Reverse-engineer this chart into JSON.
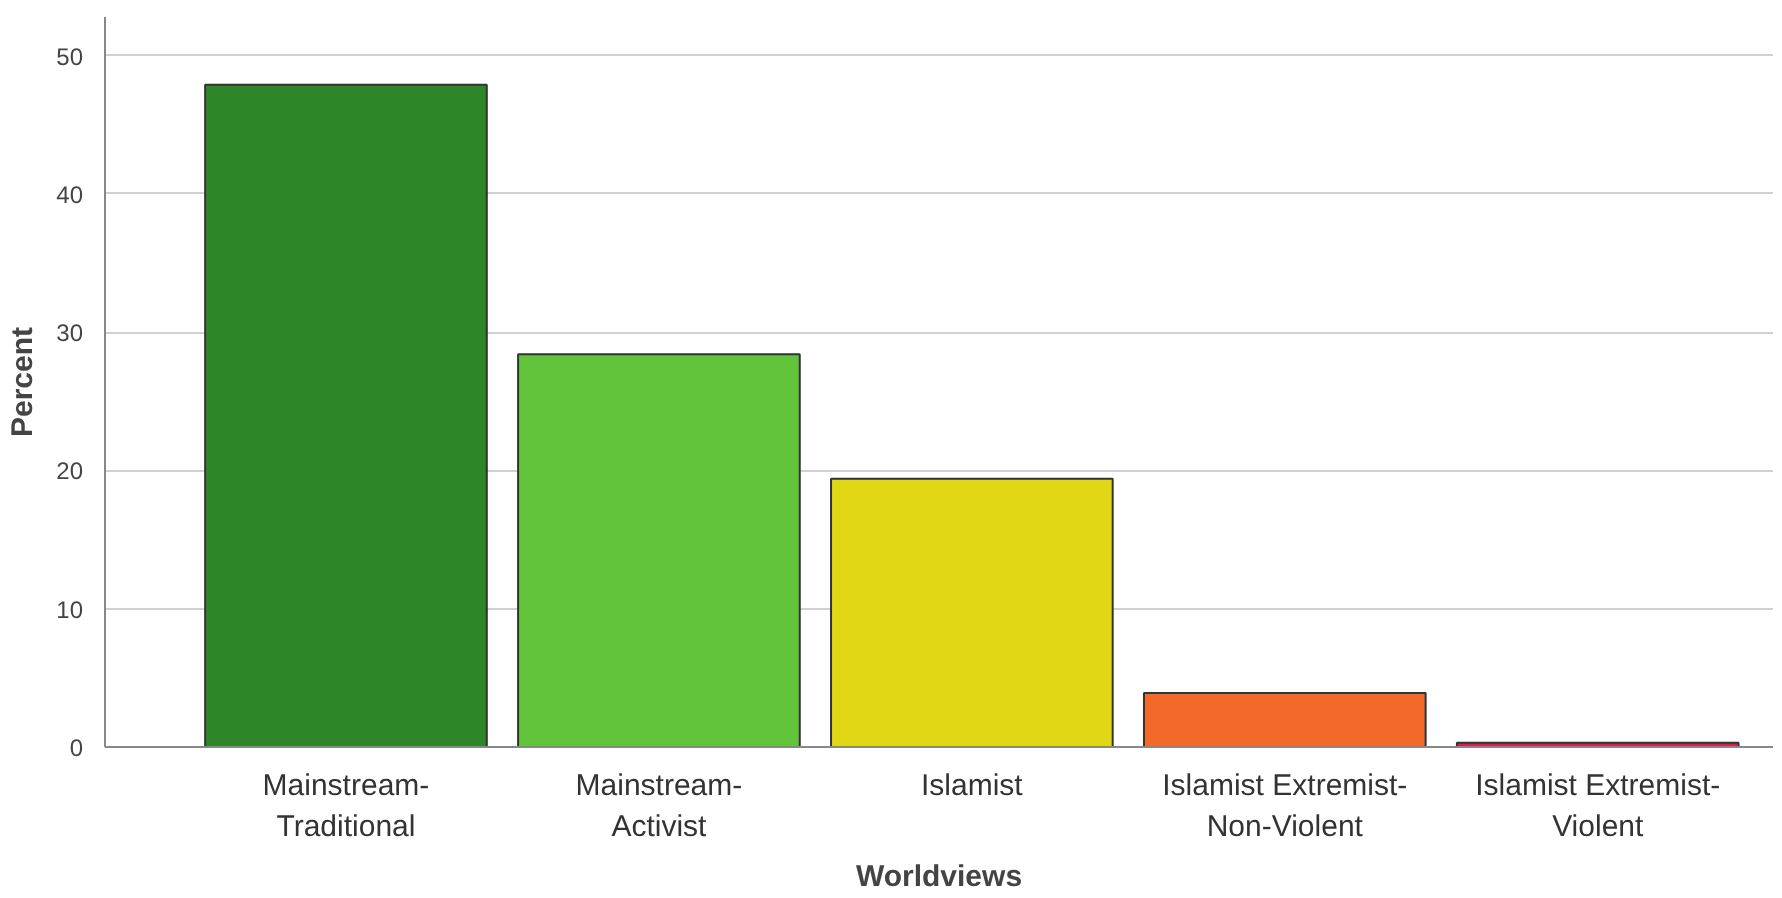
{
  "chart_data": {
    "type": "bar",
    "xlabel": "Worldviews",
    "ylabel": "Percent",
    "categories": [
      "Mainstream-\nTraditional",
      "Mainstream-\nActivist",
      "Islamist",
      "Islamist Extremist-\nNon-Violent",
      "Islamist Extremist-\nViolent"
    ],
    "values": [
      47.9,
      28.4,
      19.4,
      3.9,
      0.3
    ],
    "colors": [
      "#2d8629",
      "#62c43a",
      "#e2d714",
      "#f2692b",
      "#e0184a"
    ],
    "ylim": [
      0,
      52.8
    ],
    "yticks": [
      0,
      10,
      20,
      30,
      40,
      50
    ],
    "grid": "y"
  }
}
